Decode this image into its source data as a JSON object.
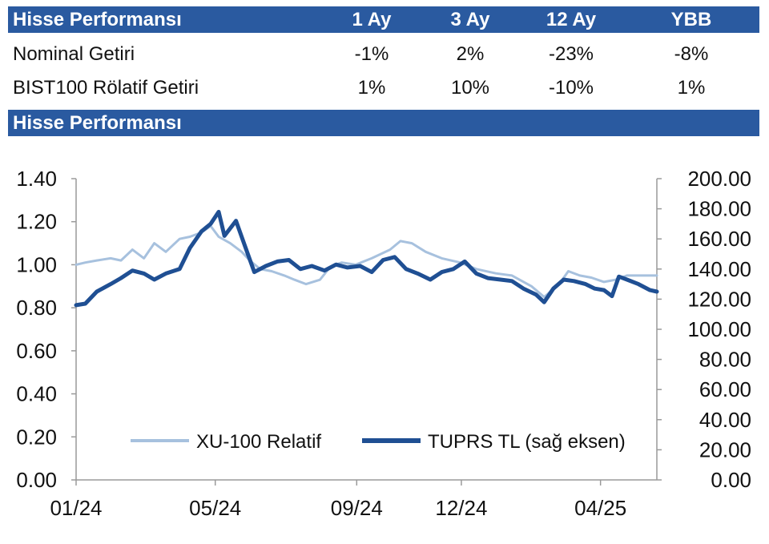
{
  "table": {
    "header": {
      "title": "Hisse Performansı",
      "columns": [
        "1 Ay",
        "3 Ay",
        "12 Ay",
        "YBB"
      ]
    },
    "rows": [
      {
        "label": "Nominal Getiri",
        "values": [
          "-1%",
          "2%",
          "-23%",
          "-8%"
        ]
      },
      {
        "label": "BIST100 Rölatif Getiri",
        "values": [
          "1%",
          "10%",
          "-10%",
          "1%"
        ]
      }
    ]
  },
  "chart_section_title": "Hisse Performansı",
  "colors": {
    "header_bg": "#2a5aa0",
    "series_light": "#a7c1de",
    "series_dark": "#1f4f93"
  },
  "chart_data": {
    "type": "line",
    "x_tick_labels": [
      "01/24",
      "05/24",
      "09/24",
      "12/24",
      "04/25"
    ],
    "x_tick_dates": [
      "2024-01-02",
      "2024-05-02",
      "2024-09-02",
      "2024-12-02",
      "2025-04-02"
    ],
    "x_range": [
      "2024-01-02",
      "2025-05-21"
    ],
    "left_axis": {
      "ylim": [
        0,
        1.4
      ],
      "ticks": [
        "0.00",
        "0.20",
        "0.40",
        "0.60",
        "0.80",
        "1.00",
        "1.20",
        "1.40"
      ]
    },
    "right_axis": {
      "ylim": [
        0,
        200
      ],
      "ticks": [
        "0.00",
        "20.00",
        "40.00",
        "60.00",
        "80.00",
        "100.00",
        "120.00",
        "140.00",
        "160.00",
        "180.00",
        "200.00"
      ]
    },
    "grid": false,
    "legend_position": "bottom-center",
    "series": [
      {
        "name": "XU-100 Relatif",
        "axis": "left",
        "points": [
          [
            "2024-01-02",
            1.0
          ],
          [
            "2024-01-10",
            1.01
          ],
          [
            "2024-01-20",
            1.02
          ],
          [
            "2024-02-01",
            1.03
          ],
          [
            "2024-02-10",
            1.02
          ],
          [
            "2024-02-20",
            1.07
          ],
          [
            "2024-03-01",
            1.03
          ],
          [
            "2024-03-10",
            1.1
          ],
          [
            "2024-03-20",
            1.06
          ],
          [
            "2024-04-01",
            1.12
          ],
          [
            "2024-04-10",
            1.13
          ],
          [
            "2024-04-20",
            1.15
          ],
          [
            "2024-04-28",
            1.18
          ],
          [
            "2024-05-05",
            1.13
          ],
          [
            "2024-05-15",
            1.1
          ],
          [
            "2024-05-25",
            1.06
          ],
          [
            "2024-06-01",
            1.02
          ],
          [
            "2024-06-10",
            0.98
          ],
          [
            "2024-06-20",
            0.97
          ],
          [
            "2024-07-01",
            0.95
          ],
          [
            "2024-07-10",
            0.93
          ],
          [
            "2024-07-20",
            0.91
          ],
          [
            "2024-08-01",
            0.93
          ],
          [
            "2024-08-10",
            0.99
          ],
          [
            "2024-08-20",
            1.01
          ],
          [
            "2024-09-01",
            1.0
          ],
          [
            "2024-09-15",
            1.03
          ],
          [
            "2024-10-01",
            1.07
          ],
          [
            "2024-10-10",
            1.11
          ],
          [
            "2024-10-20",
            1.1
          ],
          [
            "2024-11-01",
            1.06
          ],
          [
            "2024-11-15",
            1.03
          ],
          [
            "2024-12-01",
            1.01
          ],
          [
            "2024-12-15",
            0.98
          ],
          [
            "2025-01-01",
            0.96
          ],
          [
            "2025-01-15",
            0.95
          ],
          [
            "2025-02-01",
            0.9
          ],
          [
            "2025-02-12",
            0.85
          ],
          [
            "2025-02-25",
            0.91
          ],
          [
            "2025-03-05",
            0.97
          ],
          [
            "2025-03-15",
            0.95
          ],
          [
            "2025-03-25",
            0.94
          ],
          [
            "2025-04-05",
            0.92
          ],
          [
            "2025-04-15",
            0.93
          ],
          [
            "2025-04-25",
            0.95
          ],
          [
            "2025-05-10",
            0.95
          ],
          [
            "2025-05-21",
            0.95
          ]
        ]
      },
      {
        "name": "TUPRS TL (sağ eksen)",
        "axis": "right",
        "points": [
          [
            "2024-01-02",
            116
          ],
          [
            "2024-01-10",
            117
          ],
          [
            "2024-01-20",
            125
          ],
          [
            "2024-02-01",
            130
          ],
          [
            "2024-02-10",
            134
          ],
          [
            "2024-02-20",
            139
          ],
          [
            "2024-03-01",
            137
          ],
          [
            "2024-03-10",
            133
          ],
          [
            "2024-03-20",
            137
          ],
          [
            "2024-04-01",
            140
          ],
          [
            "2024-04-10",
            154
          ],
          [
            "2024-04-20",
            165
          ],
          [
            "2024-04-28",
            170
          ],
          [
            "2024-05-05",
            178
          ],
          [
            "2024-05-10",
            162
          ],
          [
            "2024-05-20",
            172
          ],
          [
            "2024-05-28",
            155
          ],
          [
            "2024-06-05",
            138
          ],
          [
            "2024-06-15",
            142
          ],
          [
            "2024-06-25",
            145
          ],
          [
            "2024-07-05",
            146
          ],
          [
            "2024-07-15",
            140
          ],
          [
            "2024-07-25",
            142
          ],
          [
            "2024-08-05",
            139
          ],
          [
            "2024-08-15",
            143
          ],
          [
            "2024-08-25",
            141
          ],
          [
            "2024-09-05",
            142
          ],
          [
            "2024-09-15",
            138
          ],
          [
            "2024-09-25",
            146
          ],
          [
            "2024-10-05",
            148
          ],
          [
            "2024-10-15",
            140
          ],
          [
            "2024-10-25",
            137
          ],
          [
            "2024-11-05",
            133
          ],
          [
            "2024-11-15",
            138
          ],
          [
            "2024-11-25",
            140
          ],
          [
            "2024-12-05",
            145
          ],
          [
            "2024-12-15",
            137
          ],
          [
            "2024-12-25",
            134
          ],
          [
            "2025-01-05",
            133
          ],
          [
            "2025-01-15",
            132
          ],
          [
            "2025-01-25",
            127
          ],
          [
            "2025-02-05",
            123
          ],
          [
            "2025-02-12",
            118
          ],
          [
            "2025-02-20",
            127
          ],
          [
            "2025-03-01",
            133
          ],
          [
            "2025-03-10",
            132
          ],
          [
            "2025-03-20",
            130
          ],
          [
            "2025-03-28",
            127
          ],
          [
            "2025-04-05",
            126
          ],
          [
            "2025-04-12",
            122
          ],
          [
            "2025-04-18",
            135
          ],
          [
            "2025-04-25",
            133
          ],
          [
            "2025-05-05",
            130
          ],
          [
            "2025-05-15",
            126
          ],
          [
            "2025-05-21",
            125
          ]
        ]
      }
    ]
  }
}
